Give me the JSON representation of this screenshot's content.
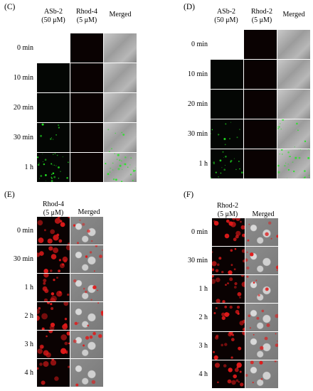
{
  "panels": {
    "C": {
      "label": "(C)",
      "headers": [
        "ASb-2\n(50 μM)",
        "Rhod-4\n(5 μM)",
        "Merged"
      ],
      "rows": [
        "0 min",
        "10 min",
        "20 min",
        "30 min",
        "1 h"
      ]
    },
    "D": {
      "label": "(D)",
      "headers": [
        "ASb-2\n(50 μM)",
        "Rhod-2\n(5 μM)",
        "Merged"
      ],
      "rows": [
        "0 min",
        "10 min",
        "20 min",
        "30 min",
        "1 h"
      ]
    },
    "E": {
      "label": "(E)",
      "headers": [
        "Rhod-4\n(5 μM)",
        "Merged"
      ],
      "rows": [
        "0 min",
        "30 min",
        "1 h",
        "2 h",
        "3 h",
        "4 h"
      ]
    },
    "F": {
      "label": "(F)",
      "headers": [
        "Rhod-2\n(5 μM)",
        "Merged"
      ],
      "rows": [
        "0 min",
        "30 min",
        "1 h",
        "2 h",
        "3 h",
        "4 h"
      ]
    }
  },
  "colors": {
    "green_signal": "#22e622",
    "red_signal": "#e01a1a",
    "dark_background": "#0a0202"
  }
}
